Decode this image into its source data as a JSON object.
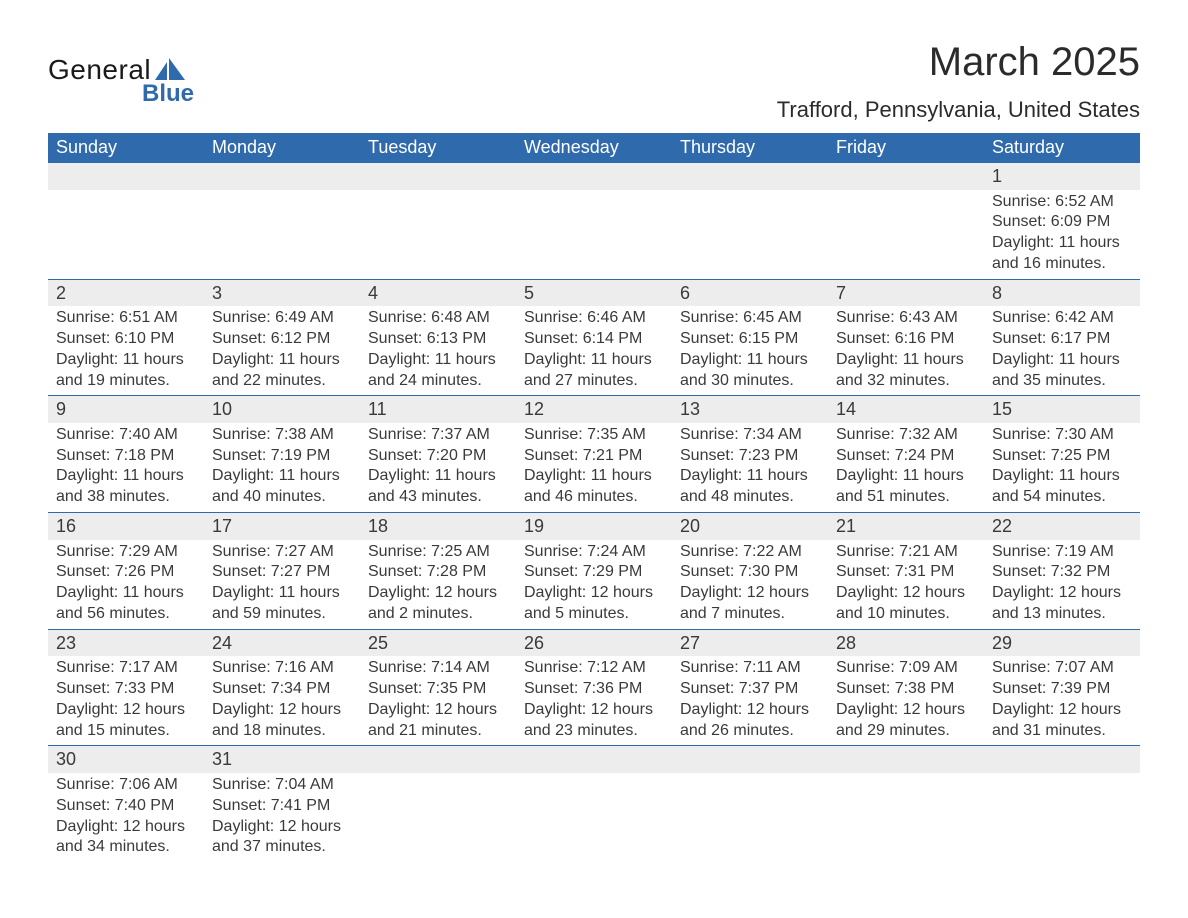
{
  "logo": {
    "text_main": "General",
    "text_sub": "Blue",
    "brand_color": "#2f6aad",
    "shape_color": "#2f6aad"
  },
  "title": "March 2025",
  "subtitle": "Trafford, Pennsylvania, United States",
  "styling": {
    "header_bg": "#2f6aad",
    "header_text_color": "#ffffff",
    "daynum_bg": "#ededed",
    "text_color": "#3a3a3a",
    "row_border_color": "#2f6aad",
    "page_bg": "#ffffff",
    "title_fontsize": 40,
    "subtitle_fontsize": 22,
    "header_fontsize": 18,
    "daynum_fontsize": 18,
    "cell_fontsize": 16
  },
  "columns": [
    "Sunday",
    "Monday",
    "Tuesday",
    "Wednesday",
    "Thursday",
    "Friday",
    "Saturday"
  ],
  "weeks": [
    [
      null,
      null,
      null,
      null,
      null,
      null,
      {
        "day": "1",
        "sunrise": "6:52 AM",
        "sunset": "6:09 PM",
        "daylight": "11 hours and 16 minutes."
      }
    ],
    [
      {
        "day": "2",
        "sunrise": "6:51 AM",
        "sunset": "6:10 PM",
        "daylight": "11 hours and 19 minutes."
      },
      {
        "day": "3",
        "sunrise": "6:49 AM",
        "sunset": "6:12 PM",
        "daylight": "11 hours and 22 minutes."
      },
      {
        "day": "4",
        "sunrise": "6:48 AM",
        "sunset": "6:13 PM",
        "daylight": "11 hours and 24 minutes."
      },
      {
        "day": "5",
        "sunrise": "6:46 AM",
        "sunset": "6:14 PM",
        "daylight": "11 hours and 27 minutes."
      },
      {
        "day": "6",
        "sunrise": "6:45 AM",
        "sunset": "6:15 PM",
        "daylight": "11 hours and 30 minutes."
      },
      {
        "day": "7",
        "sunrise": "6:43 AM",
        "sunset": "6:16 PM",
        "daylight": "11 hours and 32 minutes."
      },
      {
        "day": "8",
        "sunrise": "6:42 AM",
        "sunset": "6:17 PM",
        "daylight": "11 hours and 35 minutes."
      }
    ],
    [
      {
        "day": "9",
        "sunrise": "7:40 AM",
        "sunset": "7:18 PM",
        "daylight": "11 hours and 38 minutes."
      },
      {
        "day": "10",
        "sunrise": "7:38 AM",
        "sunset": "7:19 PM",
        "daylight": "11 hours and 40 minutes."
      },
      {
        "day": "11",
        "sunrise": "7:37 AM",
        "sunset": "7:20 PM",
        "daylight": "11 hours and 43 minutes."
      },
      {
        "day": "12",
        "sunrise": "7:35 AM",
        "sunset": "7:21 PM",
        "daylight": "11 hours and 46 minutes."
      },
      {
        "day": "13",
        "sunrise": "7:34 AM",
        "sunset": "7:23 PM",
        "daylight": "11 hours and 48 minutes."
      },
      {
        "day": "14",
        "sunrise": "7:32 AM",
        "sunset": "7:24 PM",
        "daylight": "11 hours and 51 minutes."
      },
      {
        "day": "15",
        "sunrise": "7:30 AM",
        "sunset": "7:25 PM",
        "daylight": "11 hours and 54 minutes."
      }
    ],
    [
      {
        "day": "16",
        "sunrise": "7:29 AM",
        "sunset": "7:26 PM",
        "daylight": "11 hours and 56 minutes."
      },
      {
        "day": "17",
        "sunrise": "7:27 AM",
        "sunset": "7:27 PM",
        "daylight": "11 hours and 59 minutes."
      },
      {
        "day": "18",
        "sunrise": "7:25 AM",
        "sunset": "7:28 PM",
        "daylight": "12 hours and 2 minutes."
      },
      {
        "day": "19",
        "sunrise": "7:24 AM",
        "sunset": "7:29 PM",
        "daylight": "12 hours and 5 minutes."
      },
      {
        "day": "20",
        "sunrise": "7:22 AM",
        "sunset": "7:30 PM",
        "daylight": "12 hours and 7 minutes."
      },
      {
        "day": "21",
        "sunrise": "7:21 AM",
        "sunset": "7:31 PM",
        "daylight": "12 hours and 10 minutes."
      },
      {
        "day": "22",
        "sunrise": "7:19 AM",
        "sunset": "7:32 PM",
        "daylight": "12 hours and 13 minutes."
      }
    ],
    [
      {
        "day": "23",
        "sunrise": "7:17 AM",
        "sunset": "7:33 PM",
        "daylight": "12 hours and 15 minutes."
      },
      {
        "day": "24",
        "sunrise": "7:16 AM",
        "sunset": "7:34 PM",
        "daylight": "12 hours and 18 minutes."
      },
      {
        "day": "25",
        "sunrise": "7:14 AM",
        "sunset": "7:35 PM",
        "daylight": "12 hours and 21 minutes."
      },
      {
        "day": "26",
        "sunrise": "7:12 AM",
        "sunset": "7:36 PM",
        "daylight": "12 hours and 23 minutes."
      },
      {
        "day": "27",
        "sunrise": "7:11 AM",
        "sunset": "7:37 PM",
        "daylight": "12 hours and 26 minutes."
      },
      {
        "day": "28",
        "sunrise": "7:09 AM",
        "sunset": "7:38 PM",
        "daylight": "12 hours and 29 minutes."
      },
      {
        "day": "29",
        "sunrise": "7:07 AM",
        "sunset": "7:39 PM",
        "daylight": "12 hours and 31 minutes."
      }
    ],
    [
      {
        "day": "30",
        "sunrise": "7:06 AM",
        "sunset": "7:40 PM",
        "daylight": "12 hours and 34 minutes."
      },
      {
        "day": "31",
        "sunrise": "7:04 AM",
        "sunset": "7:41 PM",
        "daylight": "12 hours and 37 minutes."
      },
      null,
      null,
      null,
      null,
      null
    ]
  ],
  "labels": {
    "sunrise_prefix": "Sunrise: ",
    "sunset_prefix": "Sunset: ",
    "daylight_prefix": "Daylight: "
  }
}
